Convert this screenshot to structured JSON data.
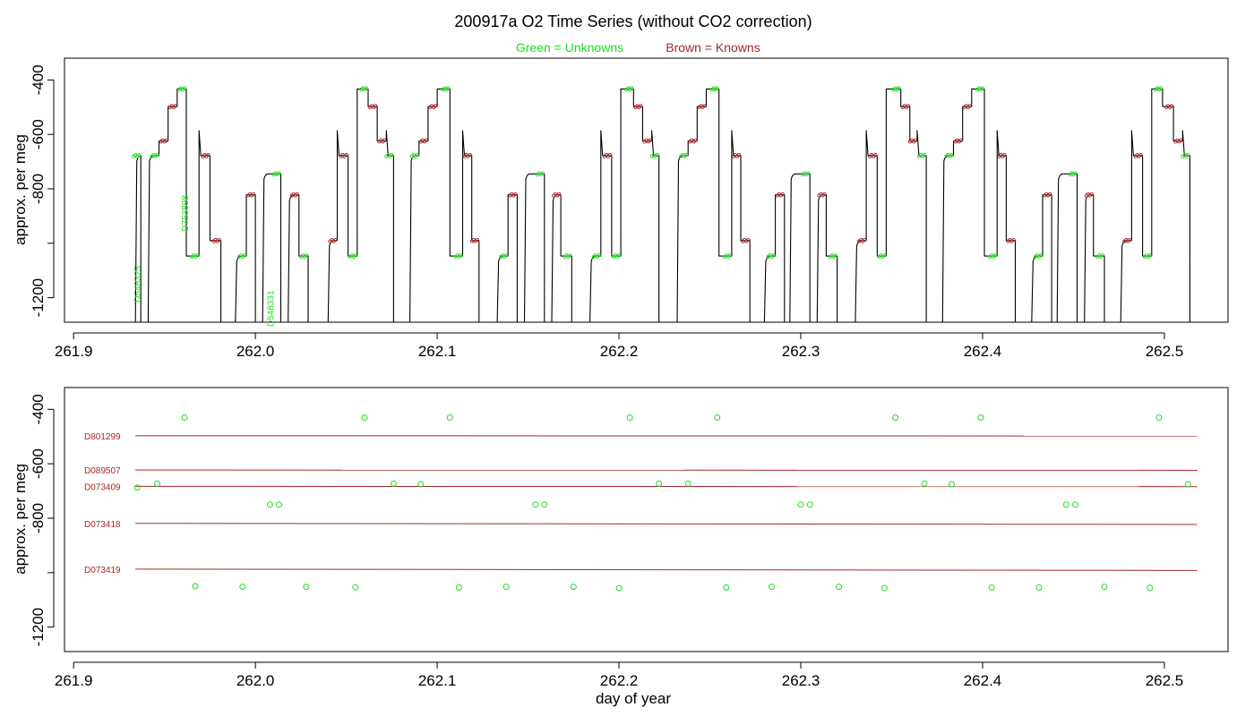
{
  "figure": {
    "title": "200917a   O2 Time Series (without CO2 correction)",
    "legend_unknowns": "Green = Unknowns",
    "legend_knowns": "Brown = Knowns",
    "colors": {
      "unknown": "#22dd22",
      "known": "#a52a2a",
      "trace": "#000000",
      "axis": "#000000"
    }
  },
  "chart_data": [
    {
      "type": "line",
      "name": "o2-time-series",
      "xlabel": "",
      "ylabel": "approx. per meg",
      "xlim": [
        261.895,
        262.535
      ],
      "ylim": [
        -1290,
        -320
      ],
      "y_reversed": true,
      "x_ticks": [
        261.9,
        262.0,
        262.1,
        262.2,
        262.3,
        262.4,
        262.5
      ],
      "x_tick_labels": [
        "261.9",
        "262.0",
        "262.1",
        "262.2",
        "262.3",
        "262.4",
        "262.5"
      ],
      "y_ticks": [
        -400,
        -600,
        -800,
        -1000,
        -1200
      ],
      "y_tick_labels": [
        "-400",
        "-600",
        "-800",
        "",
        "-1200"
      ],
      "levels": {
        "D801299": -498,
        "D089507": -624,
        "D073409": -684,
        "D073418": -822,
        "D073419": -990,
        "U_hi": -433,
        "U_mid": -745,
        "U_lo": -1047,
        "U_tw": -678
      },
      "trace_segments": [
        {
          "start": 261.934,
          "end": 261.937,
          "level": "U_tw",
          "kind": "U"
        },
        {
          "start": 261.941,
          "end": 261.947,
          "level": "U_tw",
          "kind": "U"
        },
        {
          "start": 261.947,
          "end": 261.952,
          "level": "D089507",
          "kind": "K"
        },
        {
          "start": 261.952,
          "end": 261.957,
          "level": "D801299",
          "kind": "K"
        },
        {
          "start": 261.957,
          "end": 261.962,
          "level": "U_hi",
          "kind": "U"
        },
        {
          "start": 261.962,
          "end": 261.969,
          "level": "U_lo",
          "kind": "U"
        },
        {
          "start": 261.969,
          "end": 261.975,
          "level": "U_tw",
          "kind": "K"
        },
        {
          "start": 261.975,
          "end": 261.981,
          "level": "D073419",
          "kind": "K"
        },
        {
          "start": 261.989,
          "end": 261.995,
          "level": "U_lo",
          "kind": "U"
        },
        {
          "start": 261.995,
          "end": 262.0,
          "level": "D073418",
          "kind": "K"
        },
        {
          "start": 262.004,
          "end": 262.014,
          "level": "U_mid",
          "kind": "U"
        },
        {
          "start": 262.018,
          "end": 262.024,
          "level": "D073418",
          "kind": "K"
        },
        {
          "start": 262.024,
          "end": 262.029,
          "level": "U_lo",
          "kind": "U"
        },
        {
          "start": 262.04,
          "end": 262.045,
          "level": "D073419",
          "kind": "K"
        },
        {
          "start": 262.045,
          "end": 262.051,
          "level": "U_tw",
          "kind": "K"
        },
        {
          "start": 262.051,
          "end": 262.056,
          "level": "U_lo",
          "kind": "U"
        },
        {
          "start": 262.056,
          "end": 262.062,
          "level": "U_hi",
          "kind": "U"
        },
        {
          "start": 262.062,
          "end": 262.067,
          "level": "D801299",
          "kind": "K"
        },
        {
          "start": 262.067,
          "end": 262.072,
          "level": "D089507",
          "kind": "K"
        },
        {
          "start": 262.072,
          "end": 262.076,
          "level": "U_tw",
          "kind": "U"
        },
        {
          "start": 262.085,
          "end": 262.09,
          "level": "U_tw",
          "kind": "U"
        },
        {
          "start": 262.09,
          "end": 262.095,
          "level": "D089507",
          "kind": "K"
        },
        {
          "start": 262.095,
          "end": 262.1,
          "level": "D801299",
          "kind": "K"
        },
        {
          "start": 262.1,
          "end": 262.107,
          "level": "U_hi",
          "kind": "U"
        },
        {
          "start": 262.107,
          "end": 262.114,
          "level": "U_lo",
          "kind": "U"
        },
        {
          "start": 262.114,
          "end": 262.119,
          "level": "U_tw",
          "kind": "K"
        },
        {
          "start": 262.119,
          "end": 262.123,
          "level": "D073419",
          "kind": "K"
        },
        {
          "start": 262.133,
          "end": 262.139,
          "level": "U_lo",
          "kind": "U"
        },
        {
          "start": 262.139,
          "end": 262.144,
          "level": "D073418",
          "kind": "K"
        },
        {
          "start": 262.148,
          "end": 262.159,
          "level": "U_mid",
          "kind": "U"
        },
        {
          "start": 262.163,
          "end": 262.168,
          "level": "D073418",
          "kind": "K"
        },
        {
          "start": 262.168,
          "end": 262.174,
          "level": "U_lo",
          "kind": "U"
        },
        {
          "start": 262.184,
          "end": 262.19,
          "level": "U_lo",
          "kind": "U"
        },
        {
          "start": 262.19,
          "end": 262.196,
          "level": "U_tw",
          "kind": "K"
        },
        {
          "start": 262.196,
          "end": 262.201,
          "level": "U_lo",
          "kind": "U"
        },
        {
          "start": 262.201,
          "end": 262.208,
          "level": "U_hi",
          "kind": "U"
        },
        {
          "start": 262.208,
          "end": 262.213,
          "level": "D801299",
          "kind": "K"
        },
        {
          "start": 262.213,
          "end": 262.218,
          "level": "D089507",
          "kind": "K"
        },
        {
          "start": 262.218,
          "end": 262.222,
          "level": "U_tw",
          "kind": "U"
        },
        {
          "start": 262.232,
          "end": 262.238,
          "level": "U_tw",
          "kind": "U"
        },
        {
          "start": 262.238,
          "end": 262.243,
          "level": "D089507",
          "kind": "K"
        },
        {
          "start": 262.243,
          "end": 262.248,
          "level": "D801299",
          "kind": "K"
        },
        {
          "start": 262.248,
          "end": 262.255,
          "level": "U_hi",
          "kind": "U"
        },
        {
          "start": 262.255,
          "end": 262.262,
          "level": "U_lo",
          "kind": "U"
        },
        {
          "start": 262.262,
          "end": 262.267,
          "level": "U_tw",
          "kind": "K"
        },
        {
          "start": 262.267,
          "end": 262.272,
          "level": "D073419",
          "kind": "K"
        },
        {
          "start": 262.28,
          "end": 262.286,
          "level": "U_lo",
          "kind": "U"
        },
        {
          "start": 262.286,
          "end": 262.291,
          "level": "D073418",
          "kind": "K"
        },
        {
          "start": 262.294,
          "end": 262.305,
          "level": "U_mid",
          "kind": "U"
        },
        {
          "start": 262.309,
          "end": 262.314,
          "level": "D073418",
          "kind": "K"
        },
        {
          "start": 262.314,
          "end": 262.32,
          "level": "U_lo",
          "kind": "U"
        },
        {
          "start": 262.33,
          "end": 262.336,
          "level": "D073419",
          "kind": "K"
        },
        {
          "start": 262.336,
          "end": 262.342,
          "level": "U_tw",
          "kind": "K"
        },
        {
          "start": 262.342,
          "end": 262.347,
          "level": "U_lo",
          "kind": "U"
        },
        {
          "start": 262.347,
          "end": 262.355,
          "level": "U_hi",
          "kind": "U"
        },
        {
          "start": 262.355,
          "end": 262.36,
          "level": "D801299",
          "kind": "K"
        },
        {
          "start": 262.36,
          "end": 262.364,
          "level": "D089507",
          "kind": "K"
        },
        {
          "start": 262.364,
          "end": 262.369,
          "level": "U_tw",
          "kind": "U"
        },
        {
          "start": 262.378,
          "end": 262.384,
          "level": "U_tw",
          "kind": "U"
        },
        {
          "start": 262.384,
          "end": 262.389,
          "level": "D089507",
          "kind": "K"
        },
        {
          "start": 262.389,
          "end": 262.394,
          "level": "D801299",
          "kind": "K"
        },
        {
          "start": 262.394,
          "end": 262.401,
          "level": "U_hi",
          "kind": "U"
        },
        {
          "start": 262.401,
          "end": 262.408,
          "level": "U_lo",
          "kind": "U"
        },
        {
          "start": 262.408,
          "end": 262.413,
          "level": "U_tw",
          "kind": "K"
        },
        {
          "start": 262.413,
          "end": 262.418,
          "level": "D073419",
          "kind": "K"
        },
        {
          "start": 262.427,
          "end": 262.433,
          "level": "U_lo",
          "kind": "U"
        },
        {
          "start": 262.433,
          "end": 262.438,
          "level": "D073418",
          "kind": "K"
        },
        {
          "start": 262.441,
          "end": 262.452,
          "level": "U_mid",
          "kind": "U"
        },
        {
          "start": 262.456,
          "end": 262.461,
          "level": "D073418",
          "kind": "K"
        },
        {
          "start": 262.461,
          "end": 262.467,
          "level": "U_lo",
          "kind": "U"
        },
        {
          "start": 262.476,
          "end": 262.482,
          "level": "D073419",
          "kind": "K"
        },
        {
          "start": 262.482,
          "end": 262.488,
          "level": "U_tw",
          "kind": "K"
        },
        {
          "start": 262.488,
          "end": 262.493,
          "level": "U_lo",
          "kind": "U"
        },
        {
          "start": 262.493,
          "end": 262.499,
          "level": "U_hi",
          "kind": "U"
        },
        {
          "start": 262.499,
          "end": 262.505,
          "level": "D801299",
          "kind": "K"
        },
        {
          "start": 262.505,
          "end": 262.51,
          "level": "D089507",
          "kind": "K"
        },
        {
          "start": 262.51,
          "end": 262.514,
          "level": "U_tw",
          "kind": "U"
        }
      ],
      "sample_labels": [
        {
          "text": "D548325",
          "x": 261.935,
          "y": -1150
        },
        {
          "text": "D753898",
          "x": 261.961,
          "y": -890
        },
        {
          "text": "D548331",
          "x": 262.008,
          "y": -1240
        }
      ]
    },
    {
      "type": "scatter",
      "name": "o2-averages",
      "xlabel": "day of year",
      "ylabel": "approx. per meg",
      "xlim": [
        261.895,
        262.535
      ],
      "ylim": [
        -1290,
        -320
      ],
      "y_reversed": true,
      "x_ticks": [
        261.9,
        262.0,
        262.1,
        262.2,
        262.3,
        262.4,
        262.5
      ],
      "x_tick_labels": [
        "261.9",
        "262.0",
        "262.1",
        "262.2",
        "262.3",
        "262.4",
        "262.5"
      ],
      "y_ticks": [
        -400,
        -600,
        -800,
        -1000,
        -1200
      ],
      "y_tick_labels": [
        "-400",
        "-600",
        "-800",
        "",
        "-1200"
      ],
      "known_lines": [
        {
          "name": "D801299",
          "x": [
            261.934,
            262.518
          ],
          "y": [
            -497,
            -498
          ]
        },
        {
          "name": "D089507",
          "x": [
            261.934,
            262.518
          ],
          "y": [
            -623,
            -624
          ]
        },
        {
          "name": "D073409",
          "x": [
            261.934,
            262.518
          ],
          "y": [
            -683,
            -684
          ]
        },
        {
          "name": "D073418",
          "x": [
            261.934,
            262.518
          ],
          "y": [
            -819,
            -823
          ]
        },
        {
          "name": "D073419",
          "x": [
            261.934,
            262.518
          ],
          "y": [
            -987,
            -992
          ]
        }
      ],
      "unknowns": {
        "x": [
          261.935,
          261.946,
          261.961,
          262.06,
          262.107,
          262.206,
          262.254,
          262.352,
          262.399,
          262.497,
          262.076,
          262.091,
          262.222,
          262.238,
          262.368,
          262.383,
          262.513,
          262.008,
          262.013,
          262.154,
          262.159,
          262.3,
          262.305,
          262.446,
          262.451,
          261.967,
          261.993,
          262.028,
          262.055,
          262.112,
          262.138,
          262.175,
          262.2,
          262.259,
          262.284,
          262.321,
          262.346,
          262.405,
          262.431,
          262.467,
          262.492
        ],
        "y": [
          -688,
          -673,
          -430,
          -430,
          -430,
          -430,
          -430,
          -430,
          -430,
          -430,
          -673,
          -675,
          -673,
          -673,
          -673,
          -675,
          -675,
          -750,
          -750,
          -750,
          -750,
          -750,
          -750,
          -750,
          -750,
          -1050,
          -1052,
          -1052,
          -1054,
          -1055,
          -1052,
          -1052,
          -1057,
          -1055,
          -1052,
          -1052,
          -1057,
          -1055,
          -1055,
          -1052,
          -1056
        ]
      }
    }
  ]
}
